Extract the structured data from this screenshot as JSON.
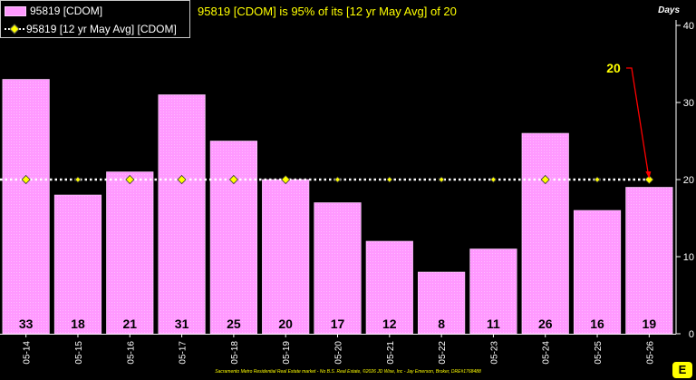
{
  "chart_data": {
    "type": "bar",
    "title": "95819 [CDOM] is 95% of its [12 yr May Avg] of 20",
    "ylabel": "Days",
    "ylim": [
      0,
      40
    ],
    "yticks": [
      0,
      10,
      20,
      30,
      40
    ],
    "categories": [
      "05-14",
      "05-15",
      "05-16",
      "05-17",
      "05-18",
      "05-19",
      "05-20",
      "05-21",
      "05-22",
      "05-23",
      "05-24",
      "05-25",
      "05-26"
    ],
    "series": [
      {
        "name": "95819 [CDOM]",
        "type": "bar",
        "values": [
          33,
          18,
          21,
          31,
          25,
          20,
          17,
          12,
          8,
          11,
          26,
          16,
          19
        ]
      },
      {
        "name": "95819 [12 yr May Avg] [CDOM]",
        "type": "line",
        "values": [
          20,
          20,
          20,
          20,
          20,
          20,
          20,
          20,
          20,
          20,
          20,
          20,
          20
        ]
      }
    ],
    "annotation": {
      "text": "20",
      "category": "05-26",
      "value": 20
    },
    "legend": "top-left",
    "grid": false
  },
  "colors": {
    "background": "#000000",
    "bar": "#ff99ff",
    "avg_marker": "#ffff00",
    "avg_line": "#ffffff",
    "annotation": "#ffff00",
    "annotation_arrow": "#ff0000",
    "text": "#ffffff"
  },
  "footer": "Sacramento Metro Residential Real Estate market - No B.S. Real Estate, ©2026 JD Wise, Inc - Jay Emerson, Broker, DRE#1768488",
  "logo_icon": "e-logo-icon",
  "logo_text": "E"
}
